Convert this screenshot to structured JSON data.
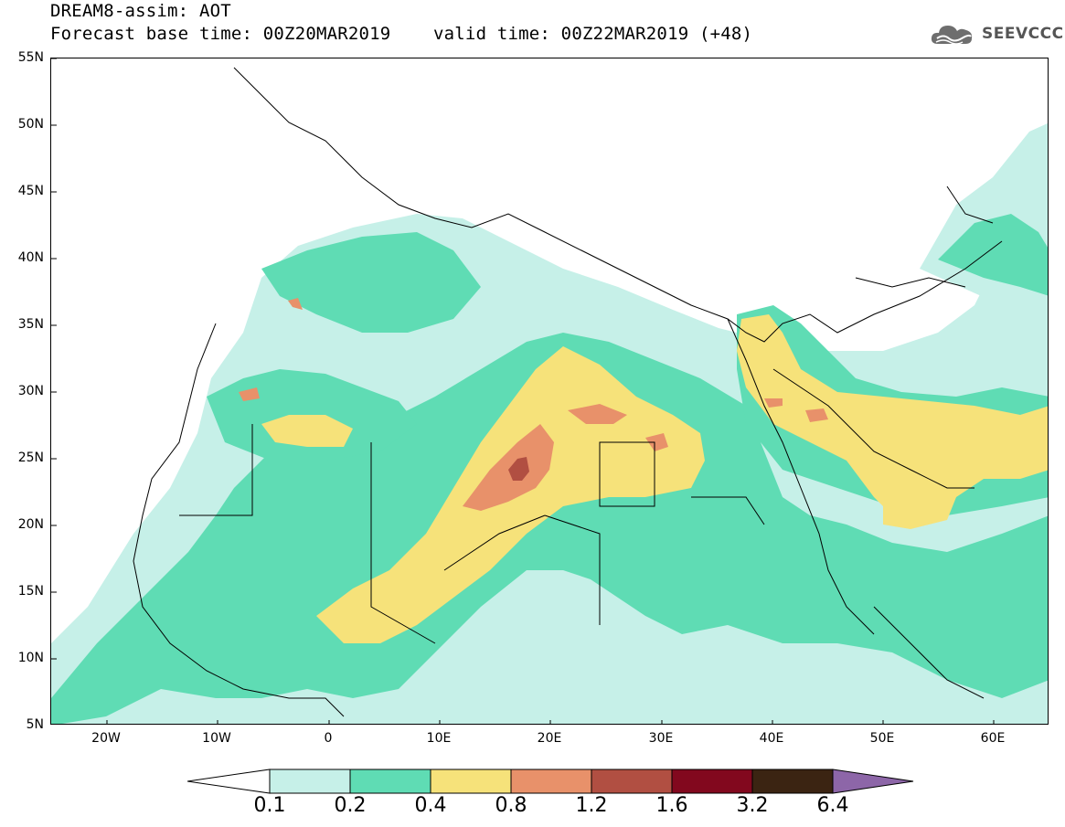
{
  "header": {
    "title": "DREAM8-assim: AOT",
    "forecast_base": "Forecast base time: 00Z20MAR2019",
    "valid_time": "valid time: 00Z22MAR2019 (+48)"
  },
  "logo": {
    "text": "SEEVCCC",
    "icon": "cloud-icon"
  },
  "axes": {
    "latitudes": [
      "55N",
      "50N",
      "45N",
      "40N",
      "35N",
      "30N",
      "25N",
      "20N",
      "15N",
      "10N",
      "5N"
    ],
    "longitudes": [
      "20W",
      "10W",
      "0",
      "10E",
      "20E",
      "30E",
      "40E",
      "50E",
      "60E"
    ]
  },
  "colorbar": {
    "labels": [
      "0.1",
      "0.2",
      "0.4",
      "0.8",
      "1.2",
      "1.6",
      "3.2",
      "6.4"
    ],
    "colors": [
      "#c6f0e8",
      "#5fdcb4",
      "#f6e27a",
      "#e8916a",
      "#b14f42",
      "#82081e",
      "#3b2412",
      "#8d66a8"
    ]
  },
  "colors": {
    "bin_0_1": "#c6f0e8",
    "bin_0_2": "#5fdcb4",
    "bin_0_4": "#f6e27a",
    "bin_0_8": "#e8916a",
    "bin_1_2": "#b14f42"
  }
}
